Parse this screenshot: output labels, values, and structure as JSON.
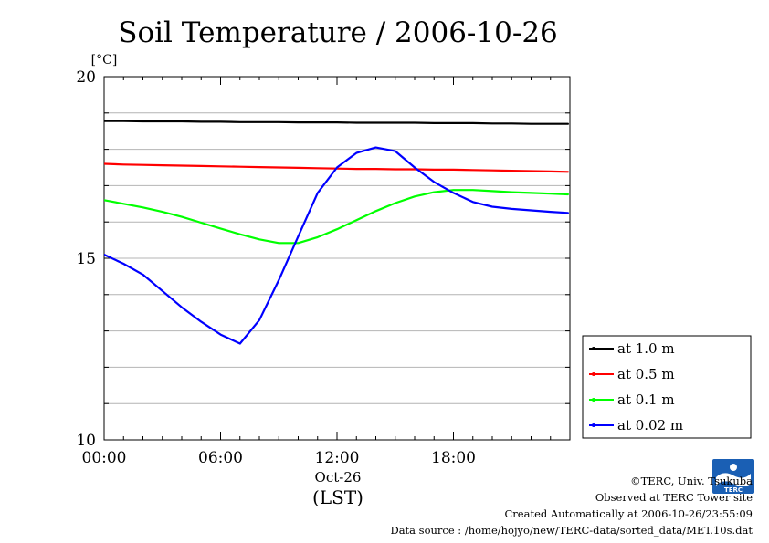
{
  "chart_data": {
    "type": "line",
    "title": "Soil Temperature / 2006-10-26",
    "ylabel": "[°C]",
    "xlabel": "(LST)",
    "x_date_label": "Oct-26",
    "xlim": [
      "00:00",
      "24:00"
    ],
    "ylim": [
      10,
      20
    ],
    "x_ticks": [
      "00:00",
      "06:00",
      "12:00",
      "18:00"
    ],
    "y_ticks": [
      10,
      15,
      20
    ],
    "grid": true,
    "legend_placement": "right",
    "x_hours": [
      0,
      1,
      2,
      3,
      4,
      5,
      6,
      7,
      8,
      9,
      10,
      11,
      12,
      13,
      14,
      15,
      16,
      17,
      18,
      19,
      20,
      21,
      22,
      23,
      23.9
    ],
    "series": [
      {
        "name": "at 1.0 m",
        "color": "#000000",
        "values": [
          18.78,
          18.78,
          18.77,
          18.77,
          18.77,
          18.76,
          18.76,
          18.75,
          18.75,
          18.75,
          18.74,
          18.74,
          18.74,
          18.73,
          18.73,
          18.73,
          18.73,
          18.72,
          18.72,
          18.72,
          18.71,
          18.71,
          18.7,
          18.7,
          18.7
        ]
      },
      {
        "name": "at 0.5 m",
        "color": "#ff0000",
        "values": [
          17.6,
          17.58,
          17.57,
          17.56,
          17.55,
          17.54,
          17.53,
          17.52,
          17.51,
          17.5,
          17.49,
          17.48,
          17.47,
          17.46,
          17.46,
          17.45,
          17.45,
          17.44,
          17.44,
          17.43,
          17.42,
          17.41,
          17.4,
          17.39,
          17.38
        ]
      },
      {
        "name": "at 0.1 m",
        "color": "#00ff00",
        "values": [
          16.6,
          16.5,
          16.4,
          16.28,
          16.14,
          15.98,
          15.82,
          15.66,
          15.52,
          15.42,
          15.42,
          15.58,
          15.8,
          16.05,
          16.3,
          16.52,
          16.7,
          16.82,
          16.88,
          16.88,
          16.85,
          16.82,
          16.8,
          16.78,
          16.76
        ]
      },
      {
        "name": "at 0.02 m",
        "color": "#0000ff",
        "values": [
          15.1,
          14.85,
          14.55,
          14.1,
          13.65,
          13.25,
          12.9,
          12.65,
          13.3,
          14.4,
          15.6,
          16.8,
          17.5,
          17.9,
          18.05,
          17.95,
          17.5,
          17.1,
          16.8,
          16.55,
          16.42,
          16.36,
          16.32,
          16.28,
          16.25
        ]
      }
    ]
  },
  "footer": {
    "copyright": "©TERC, Univ. Tsukuba",
    "observed": "Observed at TERC Tower site",
    "created": "Created Automatically at 2006-10-26/23:55:09",
    "source": "Data source : /home/hojyo/new/TERC-data/sorted_data/MET.10s.dat"
  },
  "logo": {
    "text": "TERC",
    "icon": "terc-logo-icon"
  }
}
